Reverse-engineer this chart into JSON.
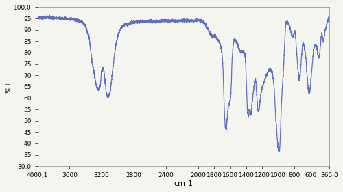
{
  "title": "",
  "xlabel": "cm-1",
  "ylabel": "%T",
  "xmin": 4000.1,
  "xmax": 365.0,
  "ymin": 30.0,
  "ymax": 100.0,
  "ytick_vals": [
    30.0,
    35,
    40,
    45,
    50,
    55,
    60,
    65,
    70,
    75,
    80,
    85,
    90,
    95,
    100.0
  ],
  "ytick_labels": [
    "30,0",
    "35",
    "40",
    "45",
    "50",
    "55",
    "60",
    "65",
    "70",
    "75",
    "80",
    "85",
    "90",
    "95",
    "100,0"
  ],
  "xtick_vals": [
    4000.1,
    3600,
    3200,
    2800,
    2400,
    2000,
    1800,
    1600,
    1400,
    1200,
    1000,
    800,
    600,
    365.0
  ],
  "xtick_labels": [
    "4000,1",
    "3600",
    "3200",
    "2800",
    "2400",
    "2000",
    "1800",
    "1600",
    "1400",
    "1200",
    "1000",
    "800",
    "600",
    "365,0"
  ],
  "line_color": "#6070c0",
  "bg_color": "#f5f5f0",
  "line_width": 0.9
}
